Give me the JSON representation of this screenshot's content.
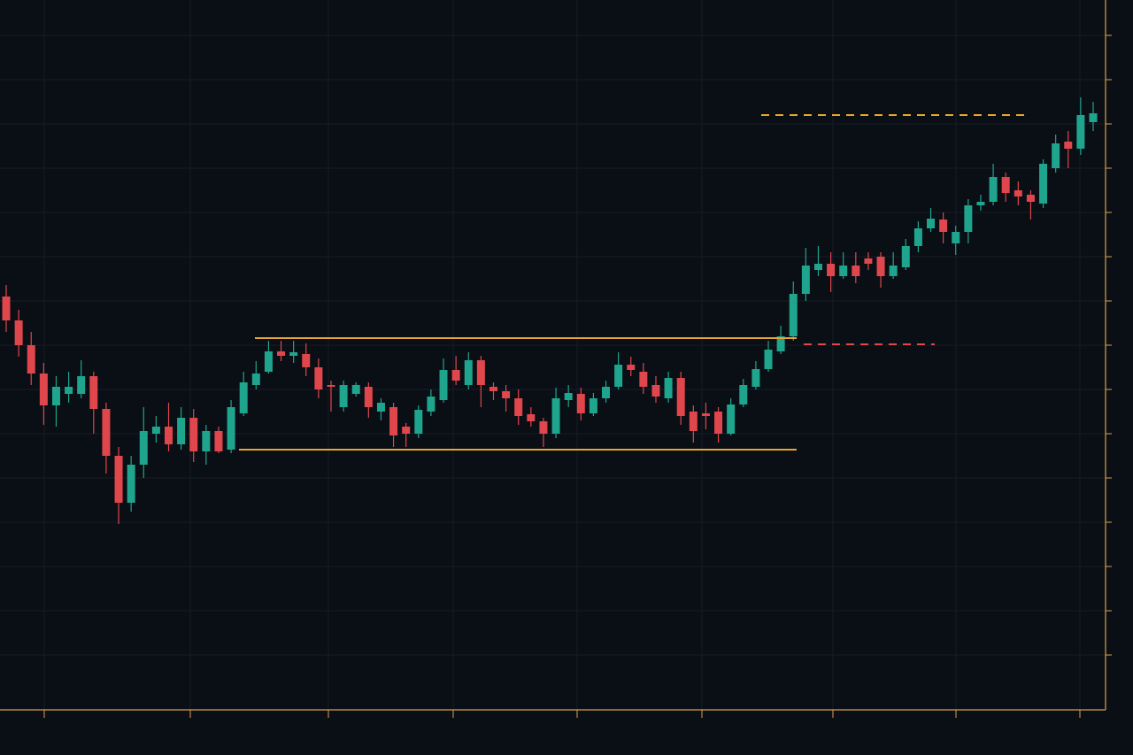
{
  "chart_data": {
    "type": "candlestick",
    "up_color": "#1fa58d",
    "down_color": "#e0474c",
    "axis_color": "#d9a04a",
    "grid": true,
    "ylim": [
      198,
      1000
    ],
    "yticks": [
      260,
      310,
      360,
      410,
      460,
      510,
      560,
      610,
      660,
      710,
      760,
      810,
      860,
      910,
      960
    ],
    "open": [
      665,
      638,
      610,
      578,
      542,
      555,
      555,
      575,
      538,
      485,
      432,
      475,
      510,
      518,
      498,
      528,
      490,
      513,
      492,
      533,
      565,
      580,
      603,
      598,
      600,
      585,
      565,
      540,
      555,
      563,
      535,
      540,
      518,
      510,
      535,
      548,
      582,
      565,
      593,
      563,
      558,
      550,
      532,
      524,
      510,
      548,
      555,
      533,
      550,
      563,
      588,
      580,
      565,
      550,
      573,
      535,
      533,
      535,
      510,
      543,
      563,
      583,
      603,
      620,
      668,
      695,
      702,
      688,
      700,
      708,
      710,
      688,
      698,
      722,
      742,
      752,
      725,
      738,
      768,
      772,
      800,
      785,
      780,
      770,
      810,
      840,
      832,
      862
    ],
    "high": [
      678,
      650,
      625,
      590,
      575,
      580,
      593,
      580,
      545,
      495,
      485,
      540,
      530,
      545,
      540,
      538,
      520,
      518,
      548,
      580,
      592,
      615,
      615,
      615,
      612,
      595,
      570,
      570,
      568,
      568,
      550,
      545,
      522,
      542,
      560,
      595,
      598,
      602,
      598,
      568,
      565,
      560,
      540,
      528,
      562,
      565,
      562,
      556,
      570,
      602,
      597,
      590,
      575,
      580,
      580,
      542,
      545,
      540,
      550,
      572,
      592,
      615,
      632,
      682,
      720,
      722,
      715,
      715,
      715,
      715,
      715,
      715,
      730,
      750,
      765,
      760,
      745,
      775,
      780,
      815,
      805,
      795,
      785,
      820,
      848,
      852,
      890,
      885
    ],
    "low": [
      625,
      597,
      565,
      520,
      518,
      545,
      550,
      510,
      465,
      408,
      422,
      460,
      500,
      490,
      492,
      478,
      475,
      488,
      488,
      530,
      560,
      578,
      592,
      590,
      575,
      550,
      535,
      535,
      552,
      528,
      525,
      495,
      495,
      505,
      530,
      545,
      565,
      560,
      540,
      548,
      535,
      520,
      518,
      495,
      505,
      540,
      525,
      530,
      545,
      560,
      575,
      555,
      545,
      545,
      520,
      500,
      515,
      500,
      508,
      540,
      560,
      580,
      600,
      615,
      660,
      688,
      670,
      685,
      680,
      695,
      675,
      685,
      695,
      715,
      738,
      725,
      712,
      725,
      762,
      768,
      772,
      768,
      752,
      765,
      805,
      810,
      825,
      852
    ],
    "close": [
      638,
      610,
      578,
      542,
      563,
      563,
      575,
      538,
      485,
      432,
      475,
      513,
      518,
      498,
      528,
      490,
      513,
      490,
      540,
      568,
      578,
      603,
      598,
      602,
      585,
      560,
      563,
      565,
      565,
      540,
      545,
      508,
      510,
      537,
      552,
      582,
      570,
      593,
      565,
      558,
      550,
      530,
      524,
      510,
      550,
      556,
      533,
      550,
      563,
      588,
      582,
      563,
      552,
      573,
      530,
      513,
      530,
      510,
      543,
      565,
      583,
      605,
      620,
      668,
      700,
      702,
      688,
      700,
      688,
      702,
      688,
      700,
      722,
      742,
      753,
      738,
      738,
      768,
      772,
      800,
      782,
      778,
      772,
      815,
      838,
      832,
      870,
      872
    ],
    "levels": [
      {
        "value": 618,
        "color": "#e8a530",
        "dashed": false
      },
      {
        "value": 492,
        "color": "#e8a530",
        "dashed": false
      },
      {
        "value": 870,
        "color": "#e8a530",
        "dashed": true
      },
      {
        "value": 611,
        "color": "#e0474c",
        "dashed": true
      }
    ]
  }
}
